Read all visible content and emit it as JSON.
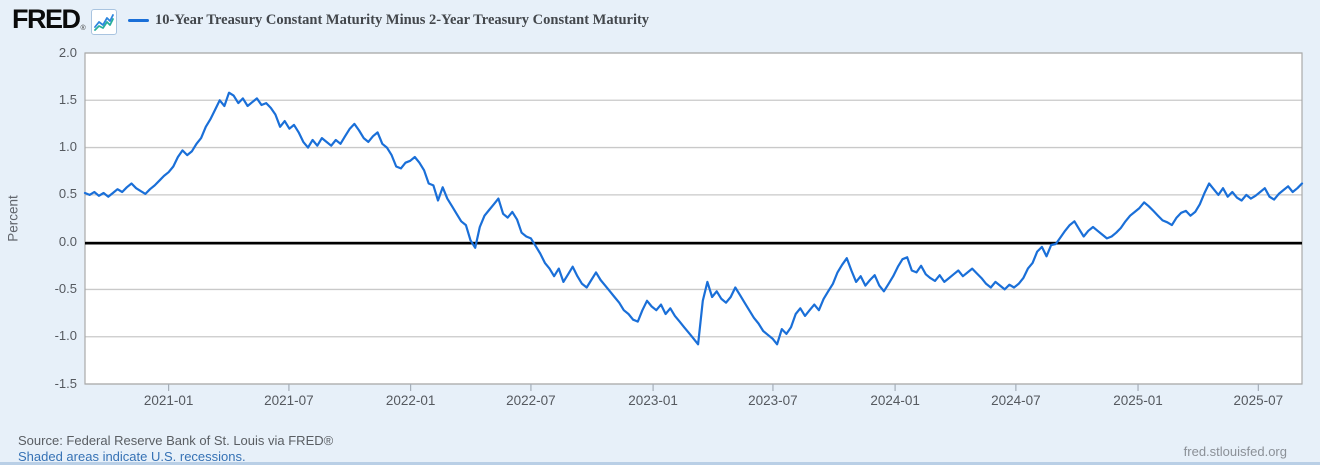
{
  "header": {
    "logo_text": "FRED",
    "registered_mark": "®",
    "logo_icon": "line-chart-icon"
  },
  "footer": {
    "source_text": "Source: Federal Reserve Bank of St. Louis via FRED®",
    "recession_note": "Shaded areas indicate U.S. recessions.",
    "site_url": "fred.stlouisfed.org"
  },
  "colors": {
    "background": "#e7f0f9",
    "plot_background": "#ffffff",
    "gridline": "#c9c9c9",
    "plot_border": "#a9a9a9",
    "zero_line": "#000000",
    "series_line": "#1a6fd8",
    "icon_line_blue": "#2e86de",
    "icon_line_teal": "#27ae9d",
    "link_blue": "#3672b5",
    "accent_bar": "#b9cfe6"
  },
  "chart_data": {
    "type": "line",
    "title": "10-Year Treasury Constant Maturity Minus 2-Year Treasury Constant Maturity",
    "xlabel": "",
    "ylabel": "Percent",
    "ylim": [
      -1.5,
      2.0
    ],
    "grid": "horizontal",
    "zero_line": true,
    "legend_position": "top",
    "yticks": [
      {
        "label": "2.0",
        "value": 2.0
      },
      {
        "label": "1.5",
        "value": 1.5
      },
      {
        "label": "1.0",
        "value": 1.0
      },
      {
        "label": "0.5",
        "value": 0.5
      },
      {
        "label": "0.0",
        "value": 0.0
      },
      {
        "label": "-0.5",
        "value": -0.5
      },
      {
        "label": "-1.0",
        "value": -1.0
      },
      {
        "label": "-1.5",
        "value": -1.5
      }
    ],
    "xticks": [
      {
        "label": "2021-01",
        "week": 18.0
      },
      {
        "label": "2021-07",
        "week": 43.9
      },
      {
        "label": "2022-01",
        "week": 70.1
      },
      {
        "label": "2022-07",
        "week": 96.0
      },
      {
        "label": "2023-01",
        "week": 122.3
      },
      {
        "label": "2023-07",
        "week": 148.1
      },
      {
        "label": "2024-01",
        "week": 174.4
      },
      {
        "label": "2024-07",
        "week": 200.4
      },
      {
        "label": "2025-01",
        "week": 226.7
      },
      {
        "label": "2025-07",
        "week": 252.6
      }
    ],
    "series": [
      {
        "name": "10-Year Treasury Constant Maturity Minus 2-Year Treasury Constant Maturity",
        "units": "Percent",
        "color": "#1a6fd8",
        "frequency": "weekly",
        "start_date": "2020-08-28",
        "end_date": "2025-09-05",
        "values": [
          0.52,
          0.5,
          0.53,
          0.49,
          0.52,
          0.48,
          0.52,
          0.56,
          0.53,
          0.58,
          0.62,
          0.57,
          0.54,
          0.51,
          0.56,
          0.6,
          0.65,
          0.7,
          0.74,
          0.8,
          0.9,
          0.97,
          0.92,
          0.96,
          1.04,
          1.1,
          1.22,
          1.3,
          1.4,
          1.5,
          1.44,
          1.58,
          1.55,
          1.47,
          1.52,
          1.44,
          1.48,
          1.52,
          1.45,
          1.47,
          1.42,
          1.35,
          1.22,
          1.28,
          1.2,
          1.24,
          1.16,
          1.06,
          1.0,
          1.08,
          1.02,
          1.1,
          1.06,
          1.02,
          1.08,
          1.04,
          1.12,
          1.2,
          1.25,
          1.18,
          1.1,
          1.06,
          1.12,
          1.16,
          1.04,
          1.0,
          0.92,
          0.8,
          0.78,
          0.84,
          0.86,
          0.9,
          0.84,
          0.76,
          0.62,
          0.6,
          0.44,
          0.58,
          0.46,
          0.38,
          0.3,
          0.22,
          0.18,
          0.02,
          -0.06,
          0.16,
          0.28,
          0.34,
          0.4,
          0.46,
          0.3,
          0.26,
          0.32,
          0.24,
          0.1,
          0.06,
          0.04,
          -0.04,
          -0.12,
          -0.22,
          -0.28,
          -0.36,
          -0.28,
          -0.42,
          -0.34,
          -0.26,
          -0.36,
          -0.44,
          -0.48,
          -0.4,
          -0.32,
          -0.4,
          -0.46,
          -0.52,
          -0.58,
          -0.64,
          -0.72,
          -0.76,
          -0.82,
          -0.84,
          -0.72,
          -0.62,
          -0.68,
          -0.72,
          -0.66,
          -0.76,
          -0.7,
          -0.78,
          -0.84,
          -0.9,
          -0.96,
          -1.02,
          -1.08,
          -0.62,
          -0.42,
          -0.58,
          -0.52,
          -0.6,
          -0.64,
          -0.58,
          -0.48,
          -0.56,
          -0.64,
          -0.72,
          -0.8,
          -0.86,
          -0.94,
          -0.98,
          -1.02,
          -1.08,
          -0.92,
          -0.97,
          -0.9,
          -0.76,
          -0.7,
          -0.78,
          -0.72,
          -0.66,
          -0.72,
          -0.6,
          -0.52,
          -0.44,
          -0.32,
          -0.24,
          -0.17,
          -0.3,
          -0.42,
          -0.36,
          -0.46,
          -0.4,
          -0.35,
          -0.46,
          -0.52,
          -0.44,
          -0.36,
          -0.26,
          -0.18,
          -0.16,
          -0.3,
          -0.32,
          -0.25,
          -0.34,
          -0.38,
          -0.41,
          -0.35,
          -0.42,
          -0.38,
          -0.34,
          -0.3,
          -0.36,
          -0.32,
          -0.28,
          -0.33,
          -0.38,
          -0.44,
          -0.48,
          -0.42,
          -0.46,
          -0.5,
          -0.45,
          -0.48,
          -0.44,
          -0.38,
          -0.28,
          -0.22,
          -0.1,
          -0.05,
          -0.15,
          -0.03,
          -0.02,
          0.05,
          0.12,
          0.18,
          0.22,
          0.14,
          0.06,
          0.12,
          0.16,
          0.12,
          0.08,
          0.04,
          0.06,
          0.1,
          0.15,
          0.22,
          0.28,
          0.32,
          0.36,
          0.42,
          0.38,
          0.33,
          0.28,
          0.23,
          0.21,
          0.18,
          0.26,
          0.31,
          0.33,
          0.28,
          0.32,
          0.4,
          0.52,
          0.62,
          0.56,
          0.5,
          0.57,
          0.48,
          0.53,
          0.47,
          0.44,
          0.5,
          0.46,
          0.49,
          0.53,
          0.57,
          0.48,
          0.45,
          0.51,
          0.55,
          0.59,
          0.53,
          0.57,
          0.62
        ]
      }
    ]
  }
}
